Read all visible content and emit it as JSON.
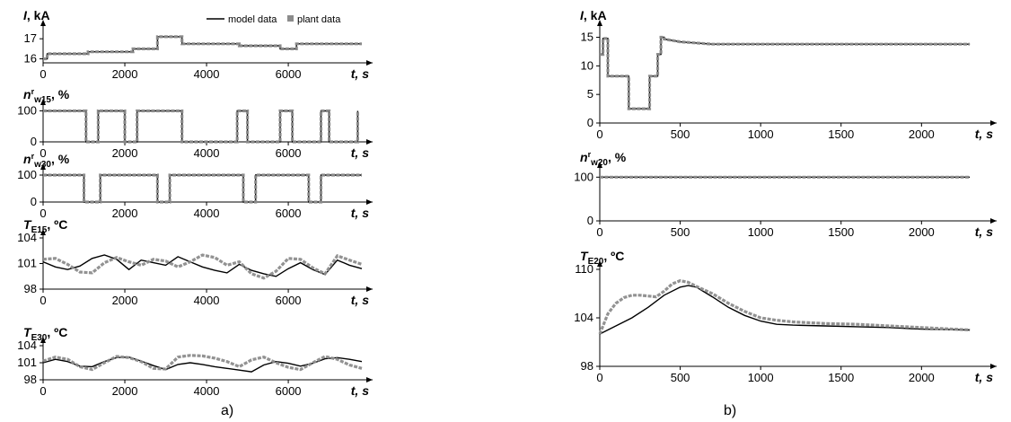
{
  "legend": {
    "model": "model data",
    "plant": "plant data"
  },
  "colors": {
    "model": "#000000",
    "plant": "#8c8c8c",
    "axis": "#000000"
  },
  "panel_labels": {
    "a": "a)",
    "b": "b)"
  },
  "chart_data": [
    {
      "id": "a1",
      "type": "line",
      "ylabel_main": "I",
      "ylabel_rest": ", kA",
      "xlabel_main": "t",
      "xlabel_rest": ", s",
      "xlim": [
        0,
        7800
      ],
      "ylim": [
        15.8,
        17.5
      ],
      "xticks": [
        0,
        2000,
        4000,
        6000
      ],
      "yticks": [
        16,
        17
      ],
      "series": [
        {
          "name": "model data",
          "x": [
            0,
            100,
            100,
            1100,
            1100,
            2200,
            2200,
            2800,
            2800,
            3400,
            3400,
            4800,
            4800,
            5800,
            5800,
            6200,
            6200,
            7800
          ],
          "y": [
            16.0,
            16.0,
            16.25,
            16.25,
            16.35,
            16.35,
            16.5,
            16.5,
            17.1,
            17.1,
            16.75,
            16.75,
            16.65,
            16.65,
            16.5,
            16.5,
            16.75,
            16.75
          ]
        },
        {
          "name": "plant data",
          "x": [
            0,
            100,
            100,
            1100,
            1100,
            2200,
            2200,
            2800,
            2800,
            3400,
            3400,
            4800,
            4800,
            5800,
            5800,
            6200,
            6200,
            7800
          ],
          "y": [
            16.0,
            16.0,
            16.25,
            16.25,
            16.35,
            16.35,
            16.5,
            16.5,
            17.1,
            17.1,
            16.75,
            16.75,
            16.65,
            16.65,
            16.5,
            16.5,
            16.75,
            16.75
          ]
        }
      ]
    },
    {
      "id": "a2",
      "type": "line",
      "ylabel_main": "n",
      "ylabel_sup": "r",
      "ylabel_sub": "w15",
      "ylabel_rest": ", %",
      "xlabel_main": "t",
      "xlabel_rest": ", s",
      "xlim": [
        0,
        7800
      ],
      "ylim": [
        0,
        110
      ],
      "xticks": [
        0,
        2000,
        4000,
        6000
      ],
      "yticks": [
        0,
        100
      ],
      "series": [
        {
          "name": "model data",
          "x": [
            0,
            1050,
            1050,
            1350,
            1350,
            2000,
            2000,
            2300,
            2300,
            3400,
            3400,
            4750,
            4750,
            5000,
            5000,
            5800,
            5800,
            6100,
            6100,
            6800,
            6800,
            7000,
            7000,
            7700,
            7700
          ],
          "y": [
            100,
            100,
            0,
            0,
            100,
            100,
            0,
            0,
            100,
            100,
            0,
            0,
            100,
            100,
            0,
            0,
            100,
            100,
            0,
            0,
            100,
            100,
            0,
            0,
            100
          ]
        },
        {
          "name": "plant data",
          "x": [
            0,
            1050,
            1050,
            1350,
            1350,
            2000,
            2000,
            2300,
            2300,
            3400,
            3400,
            4750,
            4750,
            5000,
            5000,
            5800,
            5800,
            6100,
            6100,
            6800,
            6800,
            7000,
            7000,
            7700,
            7700
          ],
          "y": [
            100,
            100,
            0,
            0,
            100,
            100,
            0,
            0,
            100,
            100,
            0,
            0,
            100,
            100,
            0,
            0,
            100,
            100,
            0,
            0,
            100,
            100,
            0,
            0,
            100
          ]
        }
      ]
    },
    {
      "id": "a3",
      "type": "line",
      "ylabel_main": "n",
      "ylabel_sup": "r",
      "ylabel_sub": "w30",
      "ylabel_rest": ", %",
      "xlabel_main": "t",
      "xlabel_rest": ", s",
      "xlim": [
        0,
        7800
      ],
      "ylim": [
        0,
        110
      ],
      "xticks": [
        0,
        2000,
        4000,
        6000
      ],
      "yticks": [
        0,
        100
      ],
      "series": [
        {
          "name": "model data",
          "x": [
            0,
            1000,
            1000,
            1400,
            1400,
            2800,
            2800,
            3100,
            3100,
            4900,
            4900,
            5200,
            5200,
            6500,
            6500,
            6800,
            6800,
            7800
          ],
          "y": [
            100,
            100,
            0,
            0,
            100,
            100,
            0,
            0,
            100,
            100,
            0,
            0,
            100,
            100,
            0,
            0,
            100,
            100
          ]
        },
        {
          "name": "plant data",
          "x": [
            0,
            1000,
            1000,
            1400,
            1400,
            2800,
            2800,
            3100,
            3100,
            4900,
            4900,
            5200,
            5200,
            6500,
            6500,
            6800,
            6800,
            7800
          ],
          "y": [
            100,
            100,
            0,
            0,
            100,
            100,
            0,
            0,
            100,
            100,
            0,
            0,
            100,
            100,
            0,
            0,
            100,
            100
          ]
        }
      ]
    },
    {
      "id": "a4",
      "type": "line",
      "ylabel_main": "T",
      "ylabel_sub": "E15",
      "ylabel_rest": ", ºC",
      "xlabel_main": "t",
      "xlabel_rest": ", s",
      "xlim": [
        0,
        7800
      ],
      "ylim": [
        98,
        104
      ],
      "xticks": [
        0,
        2000,
        4000,
        6000
      ],
      "yticks": [
        98,
        101,
        104
      ],
      "series": [
        {
          "name": "model data",
          "x": [
            0,
            300,
            600,
            900,
            1200,
            1500,
            1800,
            2100,
            2400,
            2700,
            3000,
            3300,
            3600,
            3900,
            4200,
            4500,
            4800,
            5100,
            5400,
            5700,
            6000,
            6300,
            6600,
            6900,
            7200,
            7500,
            7800
          ],
          "y": [
            101.2,
            100.6,
            100.3,
            100.7,
            101.6,
            102.0,
            101.5,
            100.3,
            101.4,
            101.1,
            100.8,
            101.8,
            101.2,
            100.6,
            100.2,
            99.9,
            100.9,
            100.2,
            99.8,
            99.5,
            100.4,
            101.1,
            100.3,
            99.7,
            101.4,
            100.8,
            100.4
          ]
        },
        {
          "name": "plant data",
          "x": [
            0,
            300,
            600,
            900,
            1200,
            1500,
            1800,
            2100,
            2400,
            2700,
            3000,
            3300,
            3600,
            3900,
            4200,
            4500,
            4800,
            5100,
            5400,
            5700,
            6000,
            6300,
            6600,
            6900,
            7200,
            7500,
            7800
          ],
          "y": [
            101.5,
            101.6,
            100.9,
            100.0,
            99.9,
            101.1,
            101.7,
            101.2,
            100.8,
            101.5,
            101.3,
            100.6,
            101.2,
            102.0,
            101.7,
            100.8,
            101.2,
            99.8,
            99.3,
            100.1,
            101.6,
            101.5,
            100.5,
            99.8,
            101.9,
            101.4,
            100.9
          ]
        }
      ]
    },
    {
      "id": "a5",
      "type": "line",
      "ylabel_main": "T",
      "ylabel_sub": "E30",
      "ylabel_rest": ", ºC",
      "xlabel_main": "t",
      "xlabel_rest": ", s",
      "xlim": [
        0,
        7800
      ],
      "ylim": [
        98,
        104
      ],
      "xticks": [
        0,
        2000,
        4000,
        6000
      ],
      "yticks": [
        98,
        101,
        104
      ],
      "series": [
        {
          "name": "model data",
          "x": [
            0,
            300,
            600,
            900,
            1200,
            1500,
            1800,
            2100,
            2400,
            2700,
            3000,
            3300,
            3600,
            3900,
            4200,
            4500,
            4800,
            5100,
            5400,
            5700,
            6000,
            6300,
            6600,
            6900,
            7200,
            7500,
            7800
          ],
          "y": [
            101.0,
            101.6,
            101.2,
            100.4,
            100.3,
            101.2,
            101.9,
            102.0,
            101.3,
            100.5,
            99.8,
            100.7,
            101.0,
            100.7,
            100.3,
            100.0,
            99.7,
            99.4,
            100.6,
            101.2,
            100.9,
            100.4,
            100.9,
            101.7,
            101.9,
            101.6,
            101.2
          ]
        },
        {
          "name": "plant data",
          "x": [
            0,
            300,
            600,
            900,
            1200,
            1500,
            1800,
            2100,
            2400,
            2700,
            3000,
            3300,
            3600,
            3900,
            4200,
            4500,
            4800,
            5100,
            5400,
            5700,
            6000,
            6300,
            6600,
            6900,
            7200,
            7500,
            7800
          ],
          "y": [
            101.3,
            102.0,
            101.6,
            100.3,
            99.8,
            101.0,
            102.1,
            101.9,
            101.2,
            100.0,
            99.9,
            102.0,
            102.3,
            102.2,
            101.8,
            101.2,
            100.3,
            101.5,
            102.0,
            101.0,
            100.2,
            99.8,
            101.0,
            102.1,
            101.6,
            100.6,
            100.0
          ]
        }
      ]
    },
    {
      "id": "b1",
      "type": "line",
      "ylabel_main": "I",
      "ylabel_rest": ", kA",
      "xlabel_main": "t",
      "xlabel_rest": ", s",
      "xlim": [
        0,
        2400
      ],
      "ylim": [
        0,
        16.5
      ],
      "xticks": [
        0,
        500,
        1000,
        1500,
        2000
      ],
      "yticks": [
        0,
        5,
        10,
        15
      ],
      "series": [
        {
          "name": "model data",
          "x": [
            0,
            20,
            20,
            50,
            50,
            180,
            180,
            310,
            310,
            360,
            360,
            380,
            380,
            400,
            400,
            500,
            700,
            2300
          ],
          "y": [
            12,
            12,
            14.8,
            14.8,
            8.2,
            8.2,
            2.5,
            2.5,
            8.2,
            8.2,
            12,
            12,
            15,
            15,
            14.7,
            14.2,
            13.8,
            13.8
          ]
        },
        {
          "name": "plant data",
          "x": [
            0,
            20,
            20,
            50,
            50,
            180,
            180,
            310,
            310,
            360,
            360,
            380,
            380,
            400,
            400,
            500,
            700,
            2300
          ],
          "y": [
            12,
            12,
            14.8,
            14.8,
            8.2,
            8.2,
            2.5,
            2.5,
            8.2,
            8.2,
            12,
            12,
            15,
            15,
            14.7,
            14.2,
            13.8,
            13.8
          ]
        }
      ]
    },
    {
      "id": "b2",
      "type": "line",
      "ylabel_main": "n",
      "ylabel_sup": "r",
      "ylabel_sub": "w20",
      "ylabel_rest": ", %",
      "xlabel_main": "t",
      "xlabel_rest": ", s",
      "xlim": [
        0,
        2400
      ],
      "ylim": [
        0,
        115
      ],
      "xticks": [
        0,
        500,
        1000,
        1500,
        2000
      ],
      "yticks": [
        0,
        100
      ],
      "series": [
        {
          "name": "model data",
          "x": [
            0,
            2300
          ],
          "y": [
            100,
            100
          ]
        },
        {
          "name": "plant data",
          "x": [
            0,
            2300
          ],
          "y": [
            100,
            100
          ]
        }
      ]
    },
    {
      "id": "b3",
      "type": "line",
      "ylabel_main": "T",
      "ylabel_sub": "E20",
      "ylabel_rest": ", ºC",
      "xlabel_main": "t",
      "xlabel_rest": ", s",
      "xlim": [
        0,
        2400
      ],
      "ylim": [
        98,
        110
      ],
      "xticks": [
        0,
        500,
        1000,
        1500,
        2000
      ],
      "yticks": [
        98,
        104,
        110
      ],
      "series": [
        {
          "name": "model data",
          "x": [
            0,
            100,
            200,
            300,
            400,
            500,
            550,
            600,
            700,
            800,
            900,
            1000,
            1100,
            1200,
            1400,
            1600,
            1800,
            2000,
            2300
          ],
          "y": [
            102,
            103,
            104,
            105.3,
            106.8,
            107.8,
            108.0,
            107.8,
            106.6,
            105.3,
            104.3,
            103.6,
            103.2,
            103.1,
            103.0,
            102.9,
            102.8,
            102.6,
            102.5
          ]
        },
        {
          "name": "plant data",
          "x": [
            0,
            50,
            100,
            150,
            200,
            250,
            300,
            350,
            400,
            450,
            500,
            550,
            600,
            700,
            800,
            900,
            1000,
            1100,
            1200,
            1400,
            1600,
            1800,
            2000,
            2300
          ],
          "y": [
            102,
            104.5,
            105.8,
            106.5,
            106.8,
            106.8,
            106.7,
            106.6,
            107.3,
            108.2,
            108.6,
            108.4,
            107.9,
            107.0,
            105.8,
            104.8,
            104.0,
            103.7,
            103.5,
            103.3,
            103.2,
            103.0,
            102.8,
            102.5
          ]
        }
      ]
    }
  ]
}
